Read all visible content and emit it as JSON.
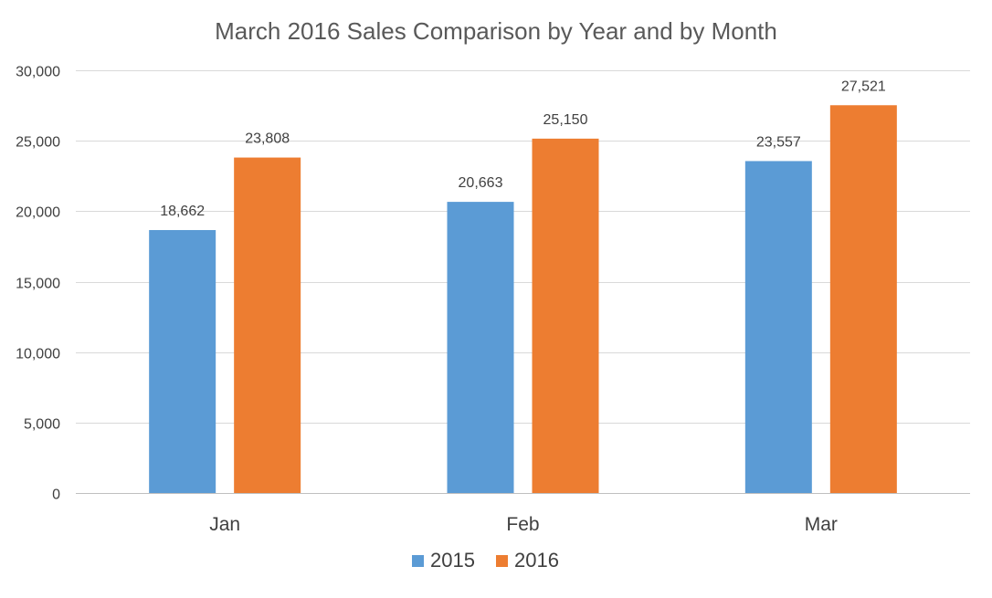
{
  "chart_data": {
    "type": "bar",
    "title": "March 2016 Sales Comparison by Year and by Month",
    "xlabel": "",
    "ylabel": "",
    "categories": [
      "Jan",
      "Feb",
      "Mar"
    ],
    "series": [
      {
        "name": "2015",
        "values": [
          18662,
          20663,
          23557
        ],
        "color": "#5b9bd5",
        "labels": [
          "18,662",
          "20,663",
          "23,557"
        ]
      },
      {
        "name": "2016",
        "values": [
          23808,
          25150,
          27521
        ],
        "color": "#ed7d31",
        "labels": [
          "23,808",
          "25,150",
          "27,521"
        ]
      }
    ],
    "ylim": [
      0,
      30000
    ],
    "yticks": [
      0,
      5000,
      10000,
      15000,
      20000,
      25000,
      30000
    ],
    "ytick_labels": [
      "0",
      "5,000",
      "10,000",
      "15,000",
      "20,000",
      "25,000",
      "30,000"
    ],
    "grid": true,
    "legend_position": "bottom"
  }
}
